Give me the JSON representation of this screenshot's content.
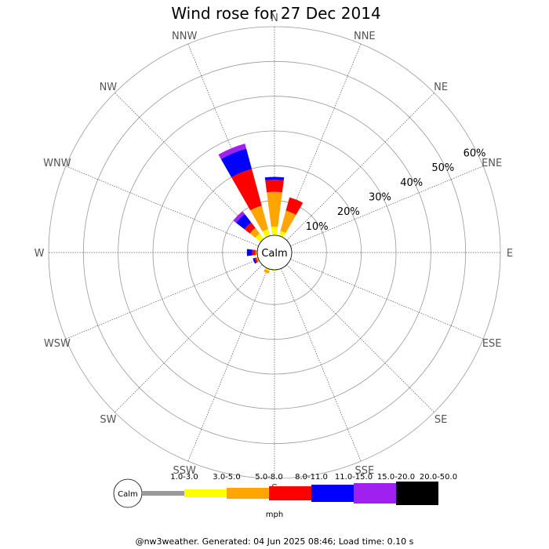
{
  "title": "Wind rose for 27 Dec 2014",
  "footer": "@nw3weather. Generated: 04 Jun 2025 08:46; Load time: 0.10 s",
  "chart_data": {
    "type": "polar-bar",
    "title": "Wind rose for 27 Dec 2014",
    "directions": [
      "N",
      "NNE",
      "NE",
      "ENE",
      "E",
      "ESE",
      "SE",
      "SSE",
      "S",
      "SSW",
      "SW",
      "WSW",
      "W",
      "WNW",
      "NW",
      "NNW"
    ],
    "radial_ticks": [
      "10%",
      "20%",
      "30%",
      "40%",
      "50%",
      "60%"
    ],
    "radial_max": 60,
    "calm_label": "Calm",
    "unit_label": "mph",
    "speed_bins": [
      {
        "label": "1.0-3.0",
        "color": "#999999"
      },
      {
        "label": "3.0-5.0",
        "color": "#ffff00"
      },
      {
        "label": "5.0-8.0",
        "color": "#ffa500"
      },
      {
        "label": "8.0-11.0",
        "color": "#ff0000"
      },
      {
        "label": "11.0-15.0",
        "color": "#0000ff"
      },
      {
        "label": "15.0-20.0",
        "color": "#a020f0"
      },
      {
        "label": "20.0-50.0",
        "color": "#000000"
      }
    ],
    "series": [
      {
        "direction": "N",
        "values": [
          0,
          2.5,
          10,
          3.5,
          0.8,
          0,
          0
        ]
      },
      {
        "direction": "NNE",
        "values": [
          0,
          1.5,
          6,
          4,
          0,
          0,
          0
        ]
      },
      {
        "direction": "NE",
        "values": [
          0,
          0,
          0,
          0,
          0,
          0,
          0
        ]
      },
      {
        "direction": "ENE",
        "values": [
          0,
          0,
          0,
          0,
          0,
          0,
          0
        ]
      },
      {
        "direction": "E",
        "values": [
          0,
          0,
          0,
          0,
          0,
          0,
          0
        ]
      },
      {
        "direction": "ESE",
        "values": [
          0,
          0,
          0,
          0,
          0,
          0,
          0
        ]
      },
      {
        "direction": "SE",
        "values": [
          0,
          0,
          0,
          0,
          0,
          0,
          0
        ]
      },
      {
        "direction": "SSE",
        "values": [
          0,
          0,
          0,
          0,
          0,
          0,
          0
        ]
      },
      {
        "direction": "S",
        "values": [
          0,
          0.3,
          0,
          0,
          0,
          0,
          0
        ]
      },
      {
        "direction": "SSW",
        "values": [
          0,
          0.5,
          0.8,
          0,
          0,
          0,
          0
        ]
      },
      {
        "direction": "SW",
        "values": [
          0,
          0,
          0,
          0,
          0,
          0,
          0
        ]
      },
      {
        "direction": "WSW",
        "values": [
          0,
          0,
          0.5,
          0.5,
          0.5,
          0,
          0
        ]
      },
      {
        "direction": "W",
        "values": [
          0,
          0,
          0.5,
          1,
          1.5,
          0,
          0
        ]
      },
      {
        "direction": "WNW",
        "values": [
          0,
          0,
          0,
          0,
          0,
          0,
          0
        ]
      },
      {
        "direction": "NW",
        "values": [
          0,
          2,
          2,
          2,
          3,
          1,
          0
        ]
      },
      {
        "direction": "NNW",
        "values": [
          0,
          2,
          7,
          11,
          6,
          1.5,
          0
        ]
      }
    ]
  }
}
